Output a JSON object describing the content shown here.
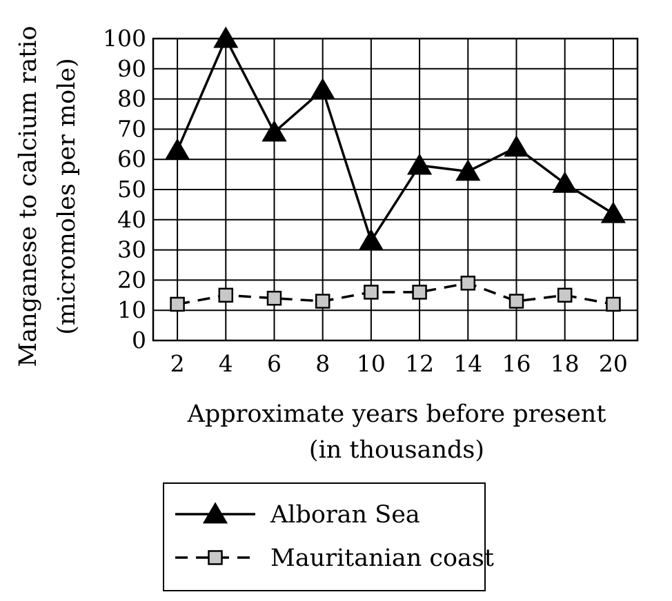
{
  "chart_data": {
    "type": "line",
    "title": "",
    "xlabel": [
      "Approximate years before present",
      "(in thousands)"
    ],
    "ylabel": [
      "Manganese to calcium ratio",
      "(micromoles per mole)"
    ],
    "x": [
      2,
      4,
      6,
      8,
      10,
      12,
      14,
      16,
      18,
      20
    ],
    "xlim": [
      1,
      21
    ],
    "ylim": [
      0,
      100
    ],
    "yticks": [
      0,
      10,
      20,
      30,
      40,
      50,
      60,
      70,
      80,
      90,
      100
    ],
    "grid": true,
    "legend_position": "bottom-center",
    "series": [
      {
        "name": "Alboran Sea",
        "marker": "triangle",
        "line": "solid",
        "marker_color": "#000000",
        "values": [
          63,
          100,
          69,
          83,
          33,
          58,
          56,
          64,
          52,
          42
        ]
      },
      {
        "name": "Mauritanian coast",
        "marker": "square",
        "line": "dashed",
        "marker_color": "#c8c8c8",
        "values": [
          12,
          15,
          14,
          13,
          16,
          16,
          19,
          13,
          15,
          12
        ]
      }
    ]
  }
}
